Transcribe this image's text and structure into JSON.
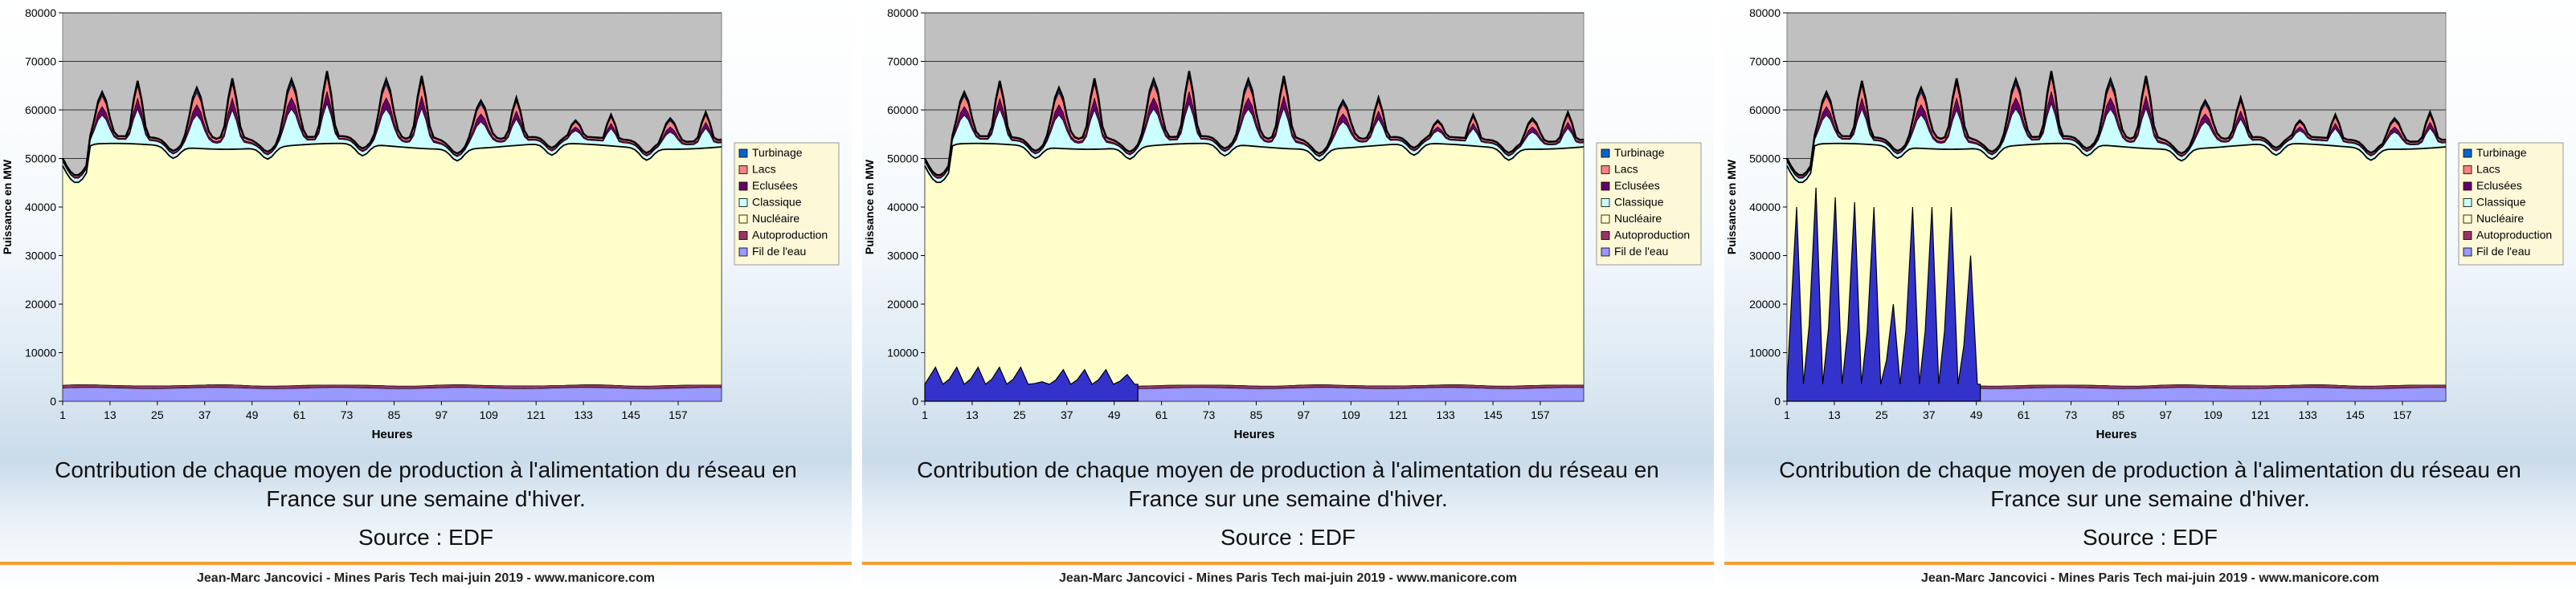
{
  "caption": {
    "line1": "Contribution de chaque moyen de production à l'alimentation du réseau en",
    "line2": "France sur une semaine d'hiver.",
    "source": "Source : EDF"
  },
  "footer": "Jean-Marc Jancovici - Mines Paris Tech mai-juin 2019 - www.manicore.com",
  "chart_data": [
    {
      "type": "area",
      "stacked": true,
      "xlabel": "Heures",
      "ylabel": "Puissance en MW",
      "ylim": [
        0,
        80000
      ],
      "yticks": [
        0,
        10000,
        20000,
        30000,
        40000,
        50000,
        60000,
        70000,
        80000
      ],
      "xlim": [
        1,
        168
      ],
      "xticks": [
        1,
        13,
        25,
        37,
        49,
        61,
        73,
        85,
        97,
        109,
        121,
        133,
        145,
        157
      ],
      "grid": true,
      "legend_position": "right",
      "colors": {
        "plot_bg": "#c0c0c0",
        "fil": "#9999ff",
        "autoproduction": "#993366",
        "nucleaire": "#ffffcc",
        "classique": "#ccffff",
        "eclusees": "#660066",
        "lacs": "#ff8080",
        "turbinage": "#0066cc",
        "overlay": "#3333cc"
      },
      "legend": [
        "Turbinage",
        "Lacs",
        "Eclusées",
        "Classique",
        "Nucléaire",
        "Autoproduction",
        "Fil de l'eau"
      ],
      "series": [
        {
          "name": "Fil de l'eau",
          "approx": {
            "base": 2700,
            "amplitude": 150
          }
        },
        {
          "name": "Autoproduction",
          "approx": {
            "base": 500,
            "amplitude": 50
          }
        },
        {
          "name": "Nucléaire",
          "approx": {
            "total_top_min": 45000,
            "total_top_max": 53500,
            "daily_dip_hour": 5
          }
        },
        {
          "name": "Classique",
          "approx": {
            "max": 6500
          }
        },
        {
          "name": "Eclusées",
          "approx": {
            "max": 3000
          }
        },
        {
          "name": "Lacs",
          "approx": {
            "max": 4500
          }
        },
        {
          "name": "Turbinage",
          "approx": {
            "max": 2500
          }
        }
      ],
      "peaks_total": [
        65000,
        66000,
        66000,
        66500,
        68000,
        68000,
        68000,
        67000,
        63000,
        62500,
        61500,
        62000,
        62000,
        62500
      ],
      "overlay": null
    },
    {
      "type": "area",
      "stacked": true,
      "xlabel": "Heures",
      "ylabel": "Puissance en MW",
      "ylim": [
        0,
        80000
      ],
      "yticks": [
        0,
        10000,
        20000,
        30000,
        40000,
        50000,
        60000,
        70000,
        80000
      ],
      "xticks": [
        1,
        13,
        25,
        37,
        49,
        61,
        73,
        85,
        97,
        109,
        121,
        133,
        145,
        157
      ],
      "legend": [
        "Turbinage",
        "Lacs",
        "Eclusées",
        "Classique",
        "Nucléaire",
        "Autoproduction",
        "Fil de l'eau"
      ],
      "overlay": {
        "x_range": [
          1,
          55
        ],
        "peaks": [
          7000,
          7000,
          7000,
          7000,
          7000,
          4000,
          6500,
          6500,
          6500,
          5500
        ],
        "base": 3500
      }
    },
    {
      "type": "area",
      "stacked": true,
      "xlabel": "Heures",
      "ylabel": "Puissance en MW",
      "ylim": [
        0,
        80000
      ],
      "yticks": [
        0,
        10000,
        20000,
        30000,
        40000,
        50000,
        60000,
        70000,
        80000
      ],
      "xticks": [
        1,
        13,
        25,
        37,
        49,
        61,
        73,
        85,
        97,
        109,
        121,
        133,
        145,
        157
      ],
      "legend": [
        "Turbinage",
        "Lacs",
        "Eclusées",
        "Classique",
        "Nucléaire",
        "Autoproduction",
        "Fil de l'eau"
      ],
      "overlay": {
        "x_range": [
          1,
          50
        ],
        "peaks": [
          40000,
          44000,
          42000,
          41000,
          40000,
          20000,
          40000,
          40000,
          40000,
          30000
        ],
        "base": 3500
      }
    }
  ]
}
